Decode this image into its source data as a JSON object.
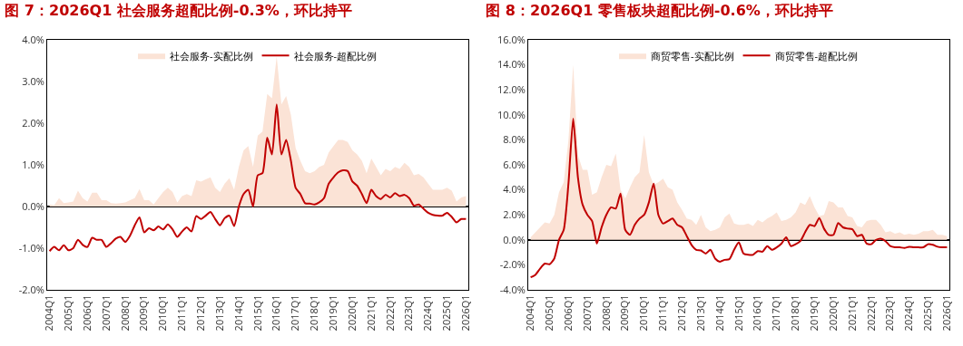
{
  "chart_data": [
    {
      "type": "line",
      "title": "图 7：2026Q1 社会服务超配比例-0.3%，环比持平",
      "legend": "top",
      "categories": [
        "2004Q1",
        null,
        null,
        null,
        "2005Q1",
        null,
        null,
        null,
        "2006Q1",
        null,
        null,
        null,
        "2007Q1",
        null,
        null,
        null,
        "2008Q1",
        null,
        null,
        null,
        "2009Q1",
        null,
        null,
        null,
        "2010Q1",
        null,
        null,
        null,
        "2011Q1",
        null,
        null,
        null,
        "2012Q1",
        null,
        null,
        null,
        "2013Q1",
        null,
        null,
        null,
        "2014Q1",
        null,
        null,
        null,
        "2015Q1",
        null,
        null,
        null,
        "2016Q1",
        null,
        null,
        null,
        "2017Q1",
        null,
        null,
        null,
        "2018Q1",
        null,
        null,
        null,
        "2019Q1",
        null,
        null,
        null,
        "2020Q1",
        null,
        null,
        null,
        "2021Q1",
        null,
        null,
        null,
        "2022Q1",
        null,
        null,
        null,
        "2023Q1",
        null,
        null,
        null,
        "2024Q1",
        null,
        null,
        null,
        "2025Q1",
        null,
        null,
        null,
        "2026Q1"
      ],
      "ylim": [
        -2,
        4
      ],
      "yticks": [
        {
          "value": -2,
          "label": "-2.0%"
        },
        {
          "value": -1,
          "label": "-1.0%"
        },
        {
          "value": 0,
          "label": "0.0%"
        },
        {
          "value": 1,
          "label": "1.0%"
        },
        {
          "value": 2,
          "label": "2.0%"
        },
        {
          "value": 3,
          "label": "3.0%"
        },
        {
          "value": 4,
          "label": "4.0%"
        }
      ],
      "series": [
        {
          "name": "社会服务-实配比例",
          "type": "area",
          "color": "#fbe3d6",
          "values": [
            0.05,
            0.03,
            0.2,
            0.08,
            0.1,
            0.12,
            0.38,
            0.2,
            0.12,
            0.33,
            0.33,
            0.15,
            0.15,
            0.08,
            0.07,
            0.08,
            0.1,
            0.15,
            0.2,
            0.42,
            0.15,
            0.15,
            0.05,
            0.2,
            0.35,
            0.45,
            0.35,
            0.1,
            0.25,
            0.3,
            0.25,
            0.63,
            0.6,
            0.65,
            0.7,
            0.45,
            0.35,
            0.55,
            0.68,
            0.4,
            0.95,
            1.35,
            1.45,
            0.95,
            1.7,
            1.8,
            2.7,
            2.6,
            3.6,
            2.45,
            2.65,
            2.2,
            1.4,
            1.1,
            0.85,
            0.8,
            0.85,
            0.95,
            1.0,
            1.3,
            1.45,
            1.6,
            1.6,
            1.55,
            1.35,
            1.25,
            1.1,
            0.8,
            1.15,
            0.95,
            0.75,
            0.9,
            0.85,
            0.95,
            0.9,
            1.05,
            0.95,
            0.75,
            0.78,
            0.7,
            0.55,
            0.4,
            0.4,
            0.4,
            0.45,
            0.38,
            0.12,
            0.22,
            0.25
          ]
        },
        {
          "name": "社会服务-超配比例",
          "type": "line",
          "color": "#c00000",
          "values": [
            -1.07,
            -0.97,
            -1.05,
            -0.93,
            -1.05,
            -1.0,
            -0.8,
            -0.92,
            -0.97,
            -0.75,
            -0.8,
            -0.8,
            -0.97,
            -0.88,
            -0.77,
            -0.73,
            -0.85,
            -0.7,
            -0.45,
            -0.26,
            -0.62,
            -0.52,
            -0.57,
            -0.48,
            -0.55,
            -0.43,
            -0.55,
            -0.73,
            -0.6,
            -0.5,
            -0.6,
            -0.23,
            -0.3,
            -0.22,
            -0.13,
            -0.3,
            -0.45,
            -0.28,
            -0.22,
            -0.47,
            0.0,
            0.3,
            0.4,
            0.0,
            0.75,
            0.8,
            1.65,
            1.25,
            2.45,
            1.25,
            1.6,
            1.1,
            0.45,
            0.3,
            0.08,
            0.07,
            0.05,
            0.1,
            0.2,
            0.55,
            0.7,
            0.82,
            0.87,
            0.85,
            0.6,
            0.5,
            0.3,
            0.08,
            0.4,
            0.25,
            0.18,
            0.28,
            0.22,
            0.32,
            0.25,
            0.28,
            0.2,
            0.02,
            0.05,
            -0.05,
            -0.15,
            -0.2,
            -0.22,
            -0.22,
            -0.15,
            -0.25,
            -0.38,
            -0.3,
            -0.3
          ]
        }
      ]
    },
    {
      "type": "line",
      "title": "图 8：2026Q1 零售板块超配比例-0.6%，环比持平",
      "legend": "top",
      "categories": [
        "2004Q1",
        null,
        null,
        null,
        "2005Q1",
        null,
        null,
        null,
        "2006Q1",
        null,
        null,
        null,
        "2007Q1",
        null,
        null,
        null,
        "2008Q1",
        null,
        null,
        null,
        "2009Q1",
        null,
        null,
        null,
        "2010Q1",
        null,
        null,
        null,
        "2011Q1",
        null,
        null,
        null,
        "2012Q1",
        null,
        null,
        null,
        "2013Q1",
        null,
        null,
        null,
        "2014Q1",
        null,
        null,
        null,
        "2015Q1",
        null,
        null,
        null,
        "2016Q1",
        null,
        null,
        null,
        "2017Q1",
        null,
        null,
        null,
        "2018Q1",
        null,
        null,
        null,
        "2019Q1",
        null,
        null,
        null,
        "2020Q1",
        null,
        null,
        null,
        "2021Q1",
        null,
        null,
        null,
        "2022Q1",
        null,
        null,
        null,
        "2023Q1",
        null,
        null,
        null,
        "2024Q1",
        null,
        null,
        null,
        "2025Q1",
        null,
        null,
        null,
        "2026Q1"
      ],
      "ylim": [
        -4,
        16
      ],
      "yticks": [
        {
          "value": -4,
          "label": "-4.0%"
        },
        {
          "value": -2,
          "label": "-2.0%"
        },
        {
          "value": 0,
          "label": "0.0%"
        },
        {
          "value": 2,
          "label": "2.0%"
        },
        {
          "value": 4,
          "label": "4.0%"
        },
        {
          "value": 6,
          "label": "6.0%"
        },
        {
          "value": 8,
          "label": "8.0%"
        },
        {
          "value": 10,
          "label": "10.0%"
        },
        {
          "value": 12,
          "label": "12.0%"
        },
        {
          "value": 14,
          "label": "14.0%"
        },
        {
          "value": 16,
          "label": "16.0%"
        }
      ],
      "series": [
        {
          "name": "商贸零售-实配比例",
          "type": "area",
          "color": "#fbe3d6",
          "values": [
            0.2,
            0.6,
            1.0,
            1.4,
            1.3,
            2.0,
            3.8,
            4.6,
            8.0,
            14.0,
            6.8,
            5.6,
            5.6,
            3.6,
            3.8,
            5.0,
            6.0,
            5.9,
            6.9,
            4.0,
            3.3,
            4.2,
            5.0,
            5.4,
            8.4,
            5.4,
            4.4,
            4.6,
            4.9,
            4.2,
            4.0,
            3.0,
            2.4,
            1.7,
            1.6,
            1.2,
            2.0,
            1.0,
            0.7,
            0.8,
            1.0,
            1.8,
            2.1,
            1.3,
            1.2,
            1.2,
            1.3,
            1.1,
            1.6,
            1.4,
            1.7,
            1.9,
            2.2,
            1.5,
            1.6,
            1.8,
            2.2,
            3.0,
            2.8,
            3.5,
            2.6,
            1.9,
            2.0,
            3.1,
            3.0,
            2.6,
            2.6,
            1.9,
            1.8,
            1.1,
            1.0,
            1.5,
            1.6,
            1.6,
            1.2,
            0.6,
            0.7,
            0.5,
            0.6,
            0.4,
            0.5,
            0.4,
            0.5,
            0.7,
            0.7,
            0.8,
            0.4,
            0.4,
            0.3
          ]
        },
        {
          "name": "商贸零售-超配比例",
          "type": "line",
          "color": "#c00000",
          "values": [
            -3.0,
            -2.8,
            -2.3,
            -1.9,
            -1.95,
            -1.5,
            0.0,
            0.8,
            4.5,
            9.7,
            5.0,
            2.8,
            2.0,
            1.5,
            -0.3,
            1.0,
            2.0,
            2.6,
            2.5,
            3.7,
            0.8,
            0.4,
            1.2,
            1.7,
            2.0,
            3.0,
            4.5,
            2.0,
            1.3,
            1.5,
            1.7,
            1.2,
            1.0,
            0.3,
            -0.4,
            -0.8,
            -0.85,
            -1.1,
            -0.8,
            -1.5,
            -1.75,
            -1.6,
            -1.55,
            -0.8,
            -0.2,
            -1.1,
            -1.2,
            -1.2,
            -0.9,
            -0.95,
            -0.5,
            -0.8,
            -0.6,
            -0.3,
            0.2,
            -0.5,
            -0.35,
            -0.1,
            0.6,
            1.2,
            1.1,
            1.75,
            0.9,
            0.4,
            0.4,
            1.35,
            1.0,
            0.9,
            0.85,
            0.3,
            0.4,
            -0.3,
            -0.35,
            0.0,
            0.1,
            -0.1,
            -0.5,
            -0.6,
            -0.6,
            -0.65,
            -0.55,
            -0.6,
            -0.6,
            -0.6,
            -0.35,
            -0.4,
            -0.55,
            -0.6,
            -0.6
          ]
        }
      ]
    }
  ]
}
